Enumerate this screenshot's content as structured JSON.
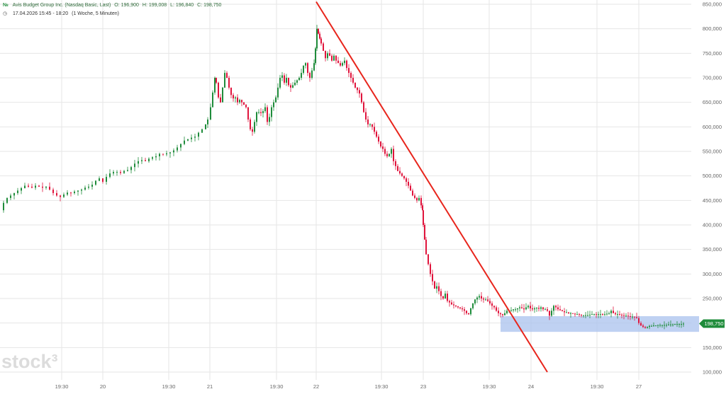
{
  "header": {
    "line1": {
      "icon": "ticker-logo-icon",
      "instrument": "Avis Budget Group Inc. (Nasdaq Basic, Last)",
      "open": "O: 196,900",
      "high": "H: 199,008",
      "low": "L: 196,840",
      "close": "C: 198,750"
    },
    "line2": {
      "icon": "clock-icon",
      "range": "17.04.2026 15:45 - 18:20",
      "period": "(1 Woche, 5 Minuten)"
    }
  },
  "watermark": "stock³",
  "last_price_label": "198,750",
  "colors": {
    "up": "#1f8c3b",
    "down": "#e0143c",
    "trendline": "#e8251c",
    "zone": "#a9c2ee",
    "price_badge": "#1f8c3b"
  },
  "chart_data": {
    "type": "candlestick",
    "title": "Avis Budget Group Inc. (Nasdaq Basic, Last)",
    "ylim": [
      100000,
      850000
    ],
    "y_ticks": [
      "100,000",
      "150,000",
      "200,000",
      "250,000",
      "300,000",
      "350,000",
      "400,000",
      "450,000",
      "500,000",
      "550,000",
      "600,000",
      "650,000",
      "700,000",
      "750,000",
      "800,000",
      "850,000"
    ],
    "x_ticks": [
      "19:30",
      "20",
      "19:30",
      "21",
      "19:30",
      "22",
      "19:30",
      "23",
      "19:30",
      "24",
      "19:30",
      "27"
    ],
    "grid": true,
    "series": [
      {
        "type": "close_path",
        "points": [
          [
            0,
            430000
          ],
          [
            5,
            445000
          ],
          [
            10,
            455000
          ],
          [
            15,
            460000
          ],
          [
            20,
            465000
          ],
          [
            25,
            470000
          ],
          [
            30,
            475000
          ],
          [
            35,
            480000
          ],
          [
            40,
            478000
          ],
          [
            45,
            476000
          ],
          [
            50,
            480000
          ],
          [
            55,
            478000
          ],
          [
            60,
            476000
          ],
          [
            65,
            478000
          ],
          [
            70,
            472000
          ],
          [
            75,
            465000
          ],
          [
            80,
            460000
          ],
          [
            85,
            457000
          ],
          [
            90,
            462000
          ],
          [
            95,
            466000
          ],
          [
            100,
            465000
          ],
          [
            105,
            468000
          ],
          [
            110,
            470000
          ],
          [
            115,
            472000
          ],
          [
            120,
            476000
          ],
          [
            125,
            478000
          ],
          [
            130,
            482000
          ],
          [
            135,
            490000
          ],
          [
            140,
            495000
          ],
          [
            145,
            488000
          ],
          [
            150,
            498000
          ],
          [
            155,
            505000
          ],
          [
            160,
            508000
          ],
          [
            165,
            508000
          ],
          [
            170,
            506000
          ],
          [
            175,
            510000
          ],
          [
            180,
            512000
          ],
          [
            185,
            518000
          ],
          [
            190,
            525000
          ],
          [
            195,
            530000
          ],
          [
            200,
            532000
          ],
          [
            205,
            530000
          ],
          [
            210,
            535000
          ],
          [
            215,
            538000
          ],
          [
            220,
            540000
          ],
          [
            225,
            545000
          ],
          [
            230,
            544000
          ],
          [
            235,
            546000
          ],
          [
            240,
            548000
          ],
          [
            245,
            552000
          ],
          [
            250,
            558000
          ],
          [
            255,
            565000
          ],
          [
            260,
            572000
          ],
          [
            265,
            575000
          ],
          [
            270,
            578000
          ],
          [
            275,
            580000
          ],
          [
            280,
            588000
          ],
          [
            285,
            595000
          ],
          [
            290,
            605000
          ],
          [
            293,
            615000
          ],
          [
            297,
            640000
          ],
          [
            300,
            670000
          ],
          [
            303,
            700000
          ],
          [
            305,
            690000
          ],
          [
            308,
            660000
          ],
          [
            311,
            650000
          ],
          [
            314,
            680000
          ],
          [
            317,
            710000
          ],
          [
            320,
            700000
          ],
          [
            323,
            680000
          ],
          [
            326,
            665000
          ],
          [
            329,
            658000
          ],
          [
            332,
            660000
          ],
          [
            335,
            650000
          ],
          [
            338,
            655000
          ],
          [
            341,
            650000
          ],
          [
            344,
            645000
          ],
          [
            347,
            640000
          ],
          [
            350,
            615000
          ],
          [
            353,
            595000
          ],
          [
            356,
            590000
          ],
          [
            359,
            610000
          ],
          [
            362,
            630000
          ],
          [
            365,
            630000
          ],
          [
            368,
            628000
          ],
          [
            371,
            632000
          ],
          [
            374,
            640000
          ],
          [
            377,
            610000
          ],
          [
            380,
            620000
          ],
          [
            383,
            640000
          ],
          [
            386,
            650000
          ],
          [
            389,
            660000
          ],
          [
            392,
            680000
          ],
          [
            395,
            700000
          ],
          [
            398,
            705000
          ],
          [
            401,
            690000
          ],
          [
            404,
            700000
          ],
          [
            407,
            685000
          ],
          [
            410,
            680000
          ],
          [
            413,
            685000
          ],
          [
            416,
            690000
          ],
          [
            419,
            695000
          ],
          [
            422,
            700000
          ],
          [
            425,
            710000
          ],
          [
            428,
            725000
          ],
          [
            431,
            730000
          ],
          [
            434,
            710000
          ],
          [
            437,
            700000
          ],
          [
            440,
            715000
          ],
          [
            443,
            730000
          ],
          [
            445,
            760000
          ],
          [
            447,
            800000
          ],
          [
            449,
            790000
          ],
          [
            451,
            780000
          ],
          [
            453,
            770000
          ],
          [
            456,
            755000
          ],
          [
            459,
            740000
          ],
          [
            462,
            750000
          ],
          [
            465,
            745000
          ],
          [
            468,
            735000
          ],
          [
            471,
            745000
          ],
          [
            474,
            735000
          ],
          [
            477,
            730000
          ],
          [
            480,
            725000
          ],
          [
            483,
            730000
          ],
          [
            486,
            735000
          ],
          [
            489,
            720000
          ],
          [
            492,
            710000
          ],
          [
            495,
            700000
          ],
          [
            498,
            690000
          ],
          [
            501,
            680000
          ],
          [
            504,
            675000
          ],
          [
            507,
            668000
          ],
          [
            510,
            650000
          ],
          [
            513,
            630000
          ],
          [
            516,
            615000
          ],
          [
            519,
            605000
          ],
          [
            522,
            605000
          ],
          [
            525,
            600000
          ],
          [
            528,
            590000
          ],
          [
            531,
            580000
          ],
          [
            534,
            570000
          ],
          [
            537,
            560000
          ],
          [
            540,
            555000
          ],
          [
            543,
            545000
          ],
          [
            546,
            540000
          ],
          [
            549,
            545000
          ],
          [
            552,
            555000
          ],
          [
            555,
            530000
          ],
          [
            558,
            520000
          ],
          [
            561,
            510000
          ],
          [
            564,
            505000
          ],
          [
            567,
            500000
          ],
          [
            570,
            495000
          ],
          [
            573,
            488000
          ],
          [
            576,
            480000
          ],
          [
            579,
            470000
          ],
          [
            582,
            460000
          ],
          [
            585,
            455000
          ],
          [
            588,
            450000
          ],
          [
            591,
            455000
          ],
          [
            594,
            440000
          ],
          [
            596,
            430000
          ],
          [
            597,
            400000
          ],
          [
            599,
            370000
          ],
          [
            601,
            340000
          ],
          [
            604,
            320000
          ],
          [
            607,
            300000
          ],
          [
            610,
            285000
          ],
          [
            613,
            270000
          ],
          [
            616,
            275000
          ],
          [
            619,
            265000
          ],
          [
            622,
            255000
          ],
          [
            625,
            250000
          ],
          [
            628,
            260000
          ],
          [
            631,
            245000
          ],
          [
            634,
            242000
          ],
          [
            637,
            238000
          ],
          [
            640,
            236000
          ],
          [
            643,
            234000
          ],
          [
            646,
            232000
          ],
          [
            649,
            230000
          ],
          [
            652,
            228000
          ],
          [
            655,
            225000
          ],
          [
            658,
            220000
          ],
          [
            661,
            218000
          ],
          [
            664,
            230000
          ],
          [
            667,
            240000
          ],
          [
            670,
            248000
          ],
          [
            673,
            252000
          ],
          [
            676,
            255000
          ],
          [
            679,
            250000
          ],
          [
            682,
            248000
          ],
          [
            685,
            248000
          ],
          [
            688,
            245000
          ],
          [
            691,
            240000
          ],
          [
            694,
            235000
          ],
          [
            697,
            232000
          ],
          [
            700,
            225000
          ],
          [
            703,
            220000
          ],
          [
            706,
            218000
          ],
          [
            709,
            216000
          ],
          [
            712,
            220000
          ],
          [
            715,
            225000
          ],
          [
            718,
            226000
          ],
          [
            721,
            226000
          ],
          [
            724,
            228000
          ],
          [
            727,
            228000
          ],
          [
            730,
            230000
          ],
          [
            733,
            232000
          ],
          [
            736,
            230000
          ],
          [
            739,
            228000
          ],
          [
            742,
            232000
          ],
          [
            745,
            235000
          ],
          [
            748,
            230000
          ],
          [
            751,
            228000
          ],
          [
            754,
            230000
          ],
          [
            757,
            231000
          ],
          [
            760,
            229000
          ],
          [
            763,
            232000
          ],
          [
            766,
            228000
          ],
          [
            769,
            228000
          ],
          [
            772,
            225000
          ],
          [
            775,
            215000
          ],
          [
            778,
            225000
          ],
          [
            781,
            235000
          ],
          [
            784,
            232000
          ],
          [
            787,
            228000
          ],
          [
            790,
            226000
          ],
          [
            793,
            224000
          ],
          [
            796,
            222000
          ],
          [
            799,
            222000
          ],
          [
            802,
            220000
          ],
          [
            805,
            220000
          ],
          [
            808,
            219000
          ],
          [
            811,
            218000
          ],
          [
            814,
            218000
          ],
          [
            817,
            217000
          ],
          [
            820,
            216000
          ],
          [
            823,
            216000
          ],
          [
            826,
            216000
          ],
          [
            829,
            216000
          ],
          [
            832,
            217000
          ],
          [
            835,
            218000
          ],
          [
            838,
            218000
          ],
          [
            841,
            217000
          ],
          [
            844,
            218000
          ],
          [
            847,
            218000
          ],
          [
            850,
            217000
          ],
          [
            853,
            218000
          ],
          [
            856,
            219000
          ],
          [
            859,
            220000
          ],
          [
            862,
            225000
          ],
          [
            865,
            220000
          ],
          [
            868,
            218000
          ],
          [
            871,
            218000
          ],
          [
            874,
            217000
          ],
          [
            877,
            216000
          ],
          [
            880,
            215000
          ],
          [
            883,
            215000
          ],
          [
            886,
            214000
          ],
          [
            889,
            213000
          ],
          [
            892,
            213000
          ],
          [
            895,
            212000
          ],
          [
            898,
            210000
          ],
          [
            901,
            200000
          ],
          [
            904,
            195000
          ],
          [
            907,
            192000
          ],
          [
            910,
            190000
          ],
          [
            913,
            192000
          ],
          [
            916,
            194000
          ],
          [
            919,
            194000
          ],
          [
            922,
            195000
          ],
          [
            925,
            195000
          ],
          [
            928,
            196000
          ],
          [
            931,
            196000
          ],
          [
            934,
            196000
          ],
          [
            937,
            196000
          ],
          [
            940,
            196000
          ],
          [
            943,
            197000
          ],
          [
            946,
            197000
          ],
          [
            949,
            197000
          ],
          [
            952,
            198000
          ],
          [
            955,
            198000
          ],
          [
            958,
            198000
          ],
          [
            961,
            198000
          ],
          [
            964,
            198750
          ]
        ]
      }
    ],
    "overlays": {
      "trendline": {
        "from": [
          446,
          855000
        ],
        "to": [
          772,
          100000
        ]
      },
      "support_zone": {
        "x0": 706,
        "x1": 986,
        "y0": 182000,
        "y1": 214000
      }
    }
  }
}
